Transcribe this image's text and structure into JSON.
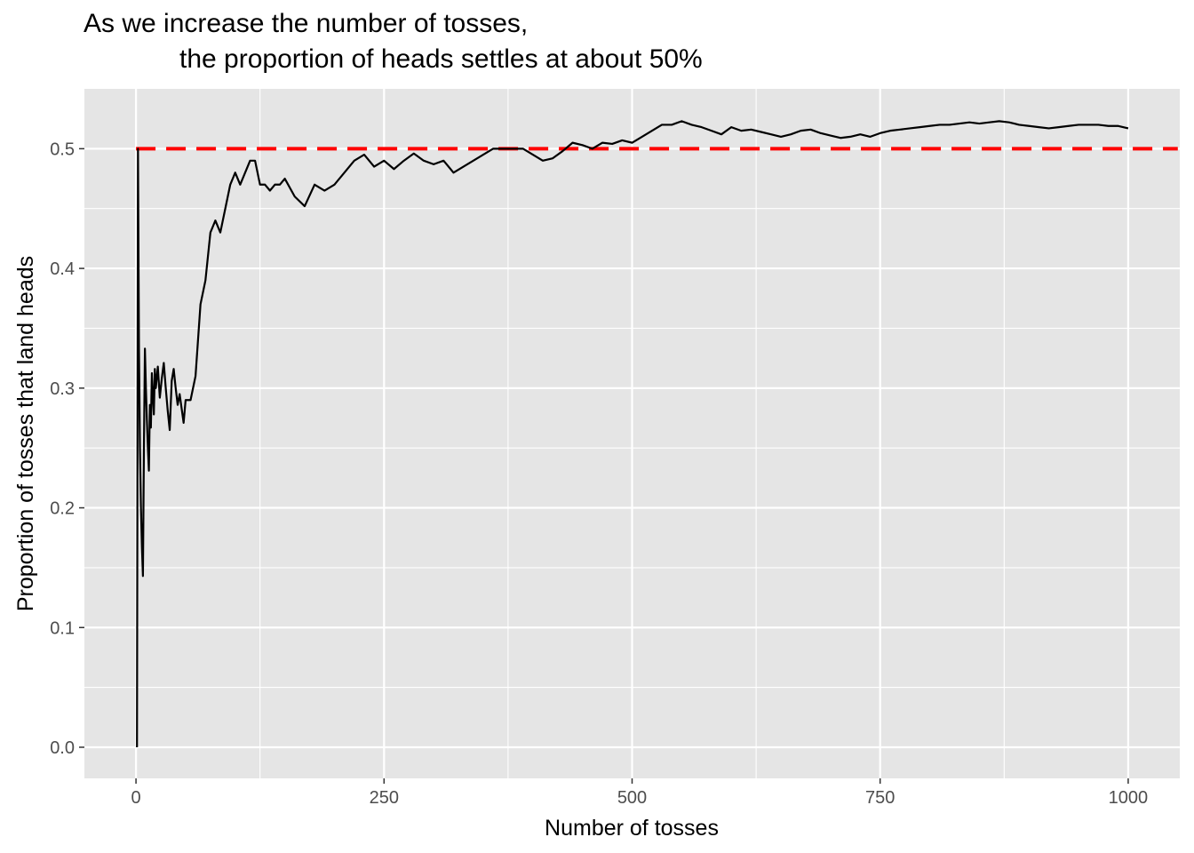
{
  "chart_data": {
    "type": "line",
    "title": "As we increase the number of tosses,",
    "subtitle": "the proportion of heads settles at about 50%",
    "xlabel": "Number of tosses",
    "ylabel": "Proportion of tosses that land heads",
    "xlim": [
      -52,
      1052
    ],
    "ylim": [
      -0.026,
      0.55
    ],
    "x_ticks": [
      0,
      250,
      500,
      750,
      1000
    ],
    "x_tick_labels": [
      "0",
      "250",
      "500",
      "750",
      "1000"
    ],
    "y_ticks": [
      0.0,
      0.1,
      0.2,
      0.3,
      0.4,
      0.5
    ],
    "y_tick_labels": [
      "0.0",
      "0.1",
      "0.2",
      "0.3",
      "0.4",
      "0.5"
    ],
    "grid": true,
    "panel_background": "#e5e5e5",
    "grid_color": "#ffffff",
    "reference_line": {
      "y": 0.5,
      "x_range": [
        0,
        1050
      ],
      "color": "#ff0000",
      "style": "dashed"
    },
    "series": [
      {
        "color": "#000000",
        "points": [
          [
            1,
            0.0
          ],
          [
            2,
            0.5
          ],
          [
            3,
            0.333
          ],
          [
            4,
            0.25
          ],
          [
            5,
            0.2
          ],
          [
            6,
            0.167
          ],
          [
            7,
            0.143
          ],
          [
            8,
            0.25
          ],
          [
            9,
            0.333
          ],
          [
            10,
            0.3
          ],
          [
            11,
            0.273
          ],
          [
            12,
            0.25
          ],
          [
            13,
            0.231
          ],
          [
            14,
            0.286
          ],
          [
            15,
            0.267
          ],
          [
            16,
            0.3125
          ],
          [
            17,
            0.294
          ],
          [
            18,
            0.278
          ],
          [
            19,
            0.316
          ],
          [
            20,
            0.3
          ],
          [
            22,
            0.318
          ],
          [
            24,
            0.292
          ],
          [
            26,
            0.308
          ],
          [
            28,
            0.321
          ],
          [
            30,
            0.3
          ],
          [
            32,
            0.281
          ],
          [
            34,
            0.265
          ],
          [
            36,
            0.306
          ],
          [
            38,
            0.316
          ],
          [
            40,
            0.3
          ],
          [
            42,
            0.286
          ],
          [
            44,
            0.295
          ],
          [
            46,
            0.283
          ],
          [
            48,
            0.271
          ],
          [
            50,
            0.29
          ],
          [
            55,
            0.29
          ],
          [
            60,
            0.31
          ],
          [
            65,
            0.37
          ],
          [
            70,
            0.39
          ],
          [
            75,
            0.43
          ],
          [
            80,
            0.44
          ],
          [
            85,
            0.43
          ],
          [
            90,
            0.45
          ],
          [
            95,
            0.47
          ],
          [
            100,
            0.48
          ],
          [
            105,
            0.47
          ],
          [
            110,
            0.48
          ],
          [
            115,
            0.49
          ],
          [
            120,
            0.49
          ],
          [
            125,
            0.47
          ],
          [
            130,
            0.47
          ],
          [
            135,
            0.465
          ],
          [
            140,
            0.47
          ],
          [
            145,
            0.47
          ],
          [
            150,
            0.475
          ],
          [
            160,
            0.46
          ],
          [
            170,
            0.452
          ],
          [
            180,
            0.47
          ],
          [
            190,
            0.465
          ],
          [
            200,
            0.47
          ],
          [
            210,
            0.48
          ],
          [
            220,
            0.49
          ],
          [
            230,
            0.495
          ],
          [
            240,
            0.485
          ],
          [
            250,
            0.49
          ],
          [
            260,
            0.483
          ],
          [
            270,
            0.49
          ],
          [
            280,
            0.496
          ],
          [
            290,
            0.49
          ],
          [
            300,
            0.487
          ],
          [
            310,
            0.49
          ],
          [
            320,
            0.48
          ],
          [
            330,
            0.485
          ],
          [
            340,
            0.49
          ],
          [
            350,
            0.495
          ],
          [
            360,
            0.5
          ],
          [
            370,
            0.5
          ],
          [
            380,
            0.5
          ],
          [
            390,
            0.5
          ],
          [
            400,
            0.495
          ],
          [
            410,
            0.49
          ],
          [
            420,
            0.492
          ],
          [
            430,
            0.498
          ],
          [
            440,
            0.505
          ],
          [
            450,
            0.503
          ],
          [
            460,
            0.5
          ],
          [
            470,
            0.505
          ],
          [
            480,
            0.504
          ],
          [
            490,
            0.507
          ],
          [
            500,
            0.505
          ],
          [
            510,
            0.51
          ],
          [
            520,
            0.515
          ],
          [
            530,
            0.52
          ],
          [
            540,
            0.52
          ],
          [
            550,
            0.523
          ],
          [
            560,
            0.52
          ],
          [
            570,
            0.518
          ],
          [
            580,
            0.515
          ],
          [
            590,
            0.512
          ],
          [
            600,
            0.518
          ],
          [
            610,
            0.515
          ],
          [
            620,
            0.516
          ],
          [
            630,
            0.514
          ],
          [
            640,
            0.512
          ],
          [
            650,
            0.51
          ],
          [
            660,
            0.512
          ],
          [
            670,
            0.515
          ],
          [
            680,
            0.516
          ],
          [
            690,
            0.513
          ],
          [
            700,
            0.511
          ],
          [
            710,
            0.509
          ],
          [
            720,
            0.51
          ],
          [
            730,
            0.512
          ],
          [
            740,
            0.51
          ],
          [
            750,
            0.513
          ],
          [
            760,
            0.515
          ],
          [
            770,
            0.516
          ],
          [
            780,
            0.517
          ],
          [
            790,
            0.518
          ],
          [
            800,
            0.519
          ],
          [
            810,
            0.52
          ],
          [
            820,
            0.52
          ],
          [
            830,
            0.521
          ],
          [
            840,
            0.522
          ],
          [
            850,
            0.521
          ],
          [
            860,
            0.522
          ],
          [
            870,
            0.523
          ],
          [
            880,
            0.522
          ],
          [
            890,
            0.52
          ],
          [
            900,
            0.519
          ],
          [
            910,
            0.518
          ],
          [
            920,
            0.517
          ],
          [
            930,
            0.518
          ],
          [
            940,
            0.519
          ],
          [
            950,
            0.52
          ],
          [
            960,
            0.52
          ],
          [
            970,
            0.52
          ],
          [
            980,
            0.519
          ],
          [
            990,
            0.519
          ],
          [
            1000,
            0.517
          ]
        ]
      }
    ]
  }
}
